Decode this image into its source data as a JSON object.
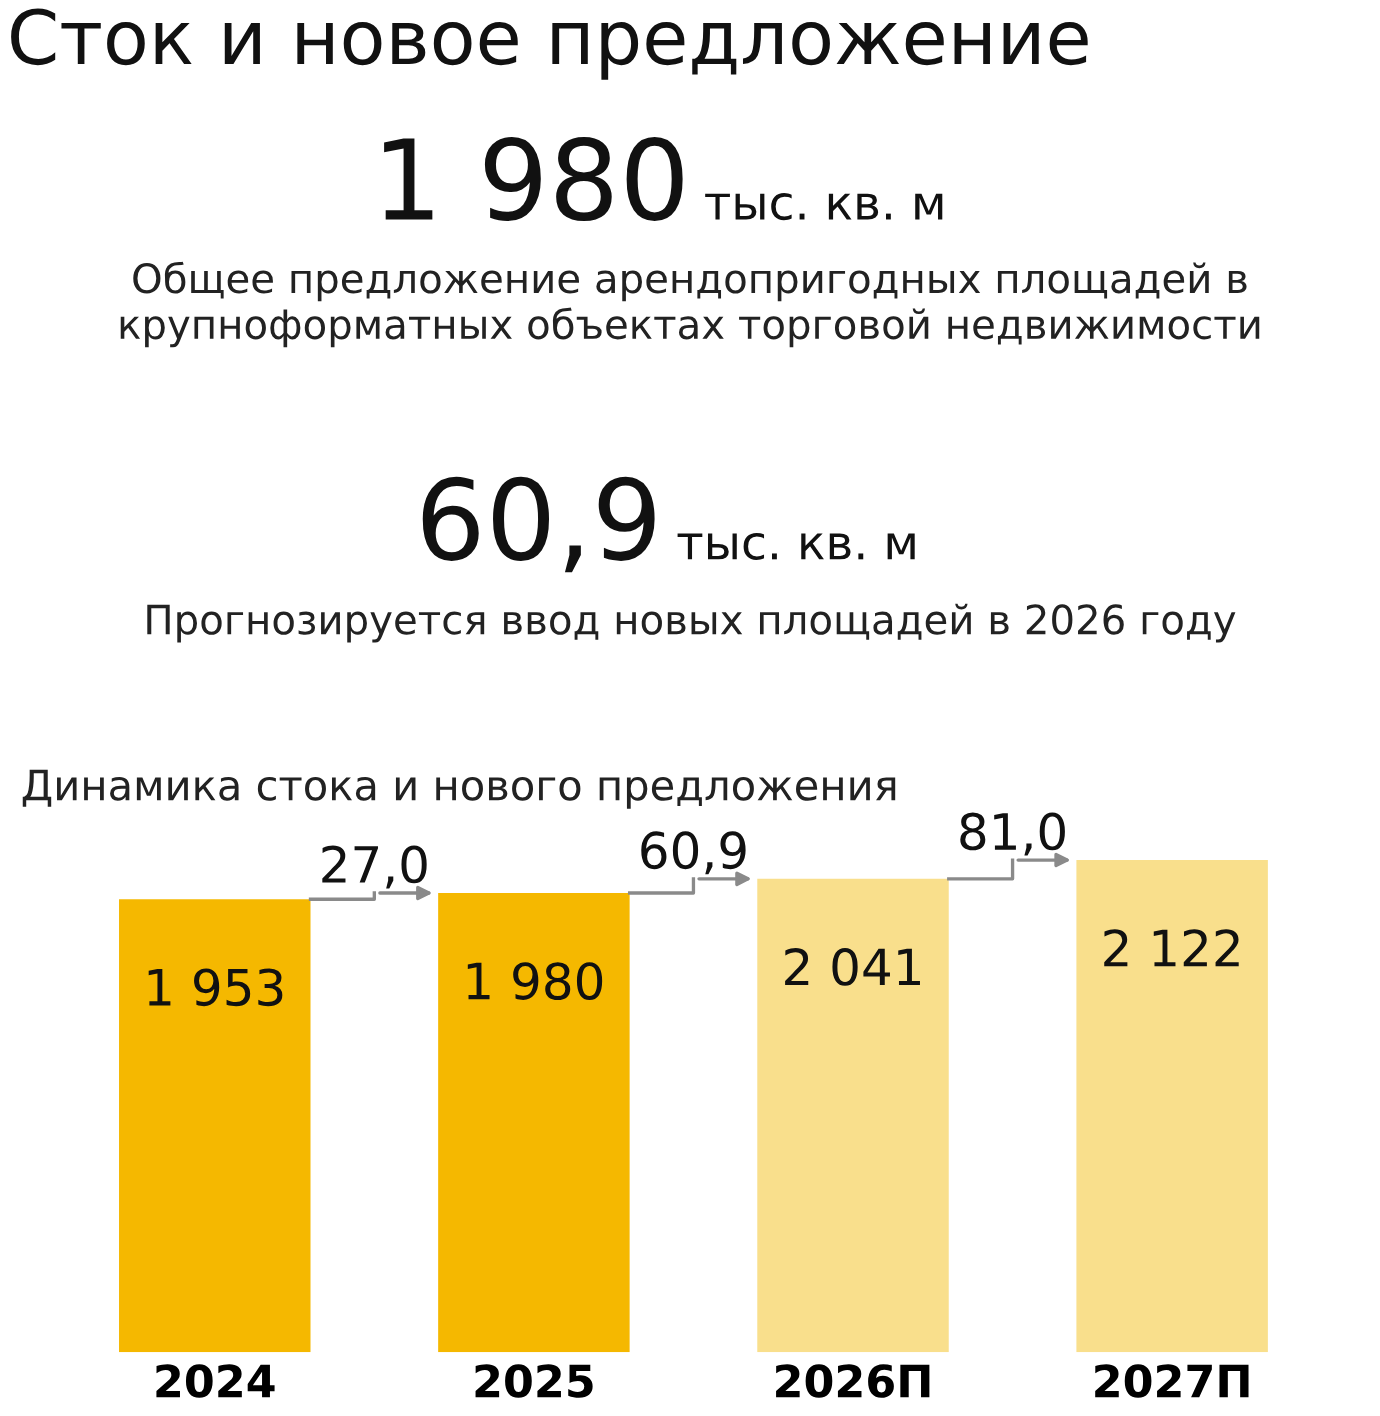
{
  "chart_data": {
    "type": "bar",
    "title": "Сток и новое предложение",
    "subtitle": "Динамика стока и нового предложения",
    "annotations": [
      "1 980",
      "тыс. кв. м",
      "Общее предложение арендопригодных площадей в крупноформатных объектах торговой недвижимости",
      "60,9",
      "тыс. кв. м",
      "Прогнозируется ввод новых площадей в 2026 году",
      "27,0",
      "60,9",
      "81,0"
    ],
    "categories": [
      "2024",
      "2025",
      "2026П",
      "2027П"
    ],
    "values": [
      1953,
      1980,
      2041,
      2122
    ],
    "value_labels": [
      "1 953",
      "1 980",
      "2 041",
      "2 122"
    ],
    "colors": [
      "#f5b800",
      "#f5b800",
      "#f9df8c",
      "#f9df8c"
    ]
  }
}
